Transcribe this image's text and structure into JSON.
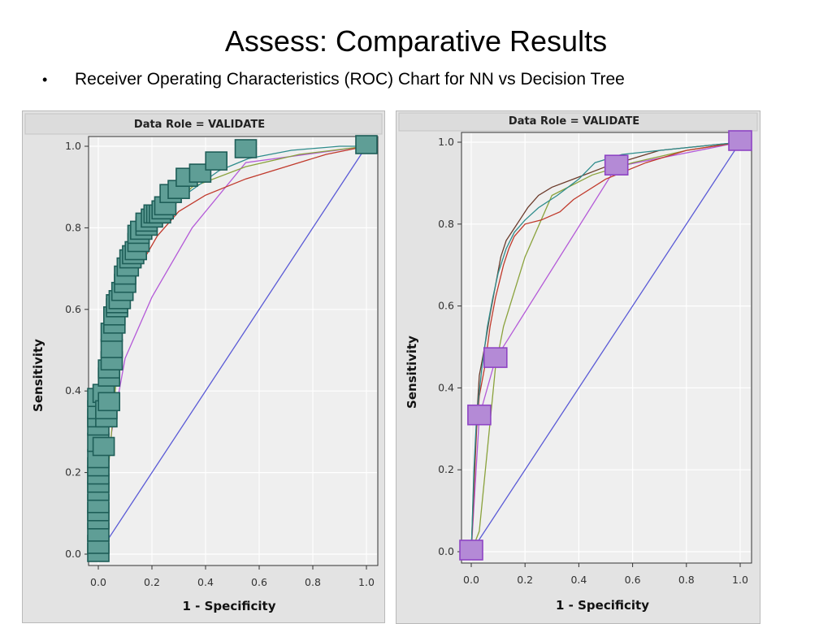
{
  "slide": {
    "title": "Assess: Comparative Results",
    "bullet_symbol": "•",
    "bullet_text": "Receiver Operating Characteristics (ROC) Chart for NN vs Decision Tree"
  },
  "colors": {
    "panel_bg": "#e3e3e3",
    "plot_bg": "#efefef",
    "grid": "#ffffff",
    "baseline": "#5a5ad6",
    "teal": "#2e8c8c",
    "red": "#c0392b",
    "olive": "#8aa23c",
    "brown": "#6b3a2a",
    "violet": "#b45ad8",
    "left_marker_fill": "#5f9e96",
    "left_marker_stroke": "#1e5e58",
    "right_marker_fill": "#b48ad6",
    "right_marker_stroke": "#8e44c4"
  },
  "chart_data": [
    {
      "type": "line",
      "title": "Data Role = VALIDATE",
      "xlabel": "1 - Specificity",
      "ylabel": "Sensitivity",
      "xlim": [
        0,
        1
      ],
      "ylim": [
        0,
        1
      ],
      "xticks": [
        "0.0",
        "0.2",
        "0.4",
        "0.6",
        "0.8",
        "1.0"
      ],
      "yticks": [
        "0.0",
        "0.2",
        "0.4",
        "0.6",
        "0.8",
        "1.0"
      ],
      "grid": true,
      "marker_size": 26,
      "series": [
        {
          "color_key": "baseline",
          "x": [
            0,
            1
          ],
          "y": [
            0,
            1
          ]
        },
        {
          "color_key": "violet",
          "x": [
            0.02,
            0.05,
            0.1,
            0.2,
            0.35,
            0.55,
            1.0
          ],
          "y": [
            0.12,
            0.3,
            0.48,
            0.63,
            0.8,
            0.96,
            1.0
          ]
        },
        {
          "color_key": "olive",
          "x": [
            0.0,
            0.03,
            0.06,
            0.09,
            0.12,
            0.2,
            0.35,
            0.55,
            0.75,
            1.0
          ],
          "y": [
            0.0,
            0.15,
            0.38,
            0.58,
            0.68,
            0.8,
            0.9,
            0.95,
            0.98,
            1.0
          ]
        },
        {
          "color_key": "red",
          "x": [
            0.0,
            0.02,
            0.04,
            0.06,
            0.1,
            0.15,
            0.22,
            0.3,
            0.4,
            0.55,
            0.7,
            0.85,
            1.0
          ],
          "y": [
            0.0,
            0.25,
            0.35,
            0.5,
            0.62,
            0.7,
            0.78,
            0.84,
            0.88,
            0.92,
            0.95,
            0.98,
            1.0
          ]
        },
        {
          "color_key": "teal",
          "x": [
            0.0,
            0.02,
            0.05,
            0.1,
            0.18,
            0.3,
            0.45,
            0.56,
            0.72,
            0.9,
            1.0
          ],
          "y": [
            0.0,
            0.25,
            0.45,
            0.65,
            0.78,
            0.87,
            0.94,
            0.97,
            0.99,
            1.0,
            1.0
          ]
        }
      ],
      "markers": {
        "color_key": "left_marker",
        "x": [
          0.0,
          0.0,
          0.0,
          0.0,
          0.0,
          0.0,
          0.0,
          0.0,
          0.0,
          0.0,
          0.0,
          0.0,
          0.0,
          0.0,
          0.0,
          0.0,
          0.02,
          0.02,
          0.03,
          0.03,
          0.04,
          0.04,
          0.04,
          0.05,
          0.05,
          0.05,
          0.06,
          0.06,
          0.07,
          0.07,
          0.08,
          0.09,
          0.1,
          0.1,
          0.11,
          0.12,
          0.13,
          0.14,
          0.15,
          0.15,
          0.16,
          0.18,
          0.18,
          0.2,
          0.21,
          0.22,
          0.23,
          0.24,
          0.25,
          0.27,
          0.3,
          0.33,
          0.38,
          0.44,
          0.55,
          1.0
        ],
        "y": [
          0.0,
          0.02,
          0.05,
          0.08,
          0.1,
          0.12,
          0.15,
          0.17,
          0.19,
          0.21,
          0.23,
          0.27,
          0.31,
          0.33,
          0.35,
          0.38,
          0.26,
          0.39,
          0.33,
          0.35,
          0.37,
          0.43,
          0.45,
          0.47,
          0.5,
          0.54,
          0.56,
          0.58,
          0.6,
          0.61,
          0.62,
          0.64,
          0.66,
          0.68,
          0.7,
          0.72,
          0.73,
          0.74,
          0.76,
          0.78,
          0.79,
          0.8,
          0.81,
          0.82,
          0.83,
          0.83,
          0.83,
          0.84,
          0.85,
          0.88,
          0.89,
          0.92,
          0.93,
          0.96,
          0.99,
          1.0
        ]
      }
    },
    {
      "type": "line",
      "title": "Data Role = VALIDATE",
      "xlabel": "1 - Specificity",
      "ylabel": "Sensitivity",
      "xlim": [
        0,
        1
      ],
      "ylim": [
        0,
        1
      ],
      "xticks": [
        "0.0",
        "0.2",
        "0.4",
        "0.6",
        "0.8",
        "1.0"
      ],
      "yticks": [
        "0.0",
        "0.2",
        "0.4",
        "0.6",
        "0.8",
        "1.0"
      ],
      "grid": true,
      "marker_size": 28,
      "series": [
        {
          "color_key": "baseline",
          "x": [
            0,
            1
          ],
          "y": [
            0,
            1
          ]
        },
        {
          "color_key": "violet",
          "x": [
            0.0,
            0.03,
            0.09,
            0.54,
            1.0
          ],
          "y": [
            0.0,
            0.33,
            0.47,
            0.94,
            1.0
          ]
        },
        {
          "color_key": "olive",
          "x": [
            0.0,
            0.03,
            0.06,
            0.09,
            0.12,
            0.2,
            0.3,
            0.45,
            0.6,
            0.8,
            1.0
          ],
          "y": [
            0.0,
            0.05,
            0.25,
            0.45,
            0.55,
            0.72,
            0.87,
            0.92,
            0.95,
            0.98,
            1.0
          ]
        },
        {
          "color_key": "red",
          "x": [
            0.0,
            0.01,
            0.02,
            0.03,
            0.05,
            0.07,
            0.09,
            0.12,
            0.14,
            0.16,
            0.2,
            0.26,
            0.33,
            0.38,
            0.5,
            0.65,
            0.8,
            1.0
          ],
          "y": [
            0.0,
            0.15,
            0.3,
            0.38,
            0.45,
            0.55,
            0.62,
            0.7,
            0.74,
            0.77,
            0.8,
            0.81,
            0.83,
            0.86,
            0.91,
            0.95,
            0.98,
            1.0
          ]
        },
        {
          "color_key": "brown",
          "x": [
            0.0,
            0.01,
            0.02,
            0.03,
            0.05,
            0.07,
            0.09,
            0.11,
            0.13,
            0.15,
            0.18,
            0.21,
            0.25,
            0.3,
            0.38,
            0.5,
            0.7,
            1.0
          ],
          "y": [
            0.0,
            0.18,
            0.32,
            0.43,
            0.5,
            0.58,
            0.65,
            0.72,
            0.76,
            0.78,
            0.81,
            0.84,
            0.87,
            0.89,
            0.91,
            0.94,
            0.98,
            1.0
          ]
        },
        {
          "color_key": "teal",
          "x": [
            0.0,
            0.01,
            0.02,
            0.04,
            0.06,
            0.08,
            0.1,
            0.13,
            0.16,
            0.2,
            0.25,
            0.32,
            0.4,
            0.46,
            0.56,
            0.7,
            1.0
          ],
          "y": [
            0.0,
            0.2,
            0.33,
            0.45,
            0.55,
            0.62,
            0.68,
            0.74,
            0.78,
            0.81,
            0.84,
            0.87,
            0.91,
            0.95,
            0.97,
            0.98,
            1.0
          ]
        }
      ],
      "markers": {
        "color_key": "right_marker",
        "x": [
          0.0,
          0.03,
          0.09,
          0.54,
          1.0
        ],
        "y": [
          0.0,
          0.33,
          0.47,
          0.94,
          1.0
        ]
      }
    }
  ]
}
